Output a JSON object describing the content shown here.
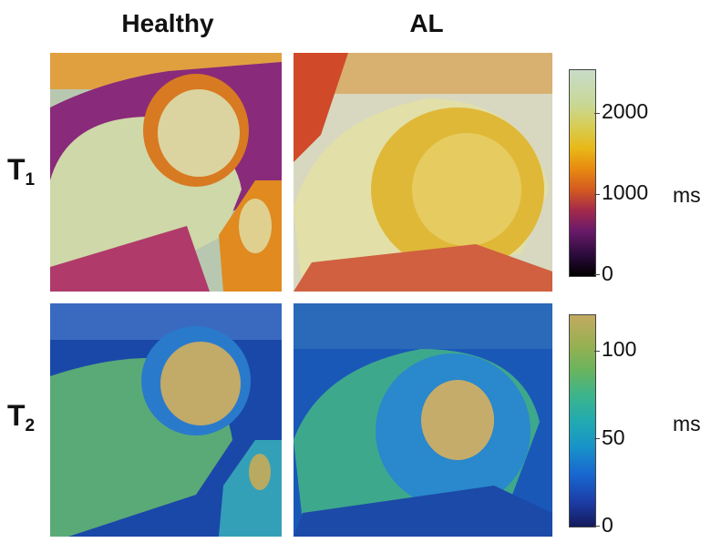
{
  "columns": {
    "healthy": "Healthy",
    "al": "AL"
  },
  "rows": {
    "t1": {
      "letter": "T",
      "sub": "1"
    },
    "t2": {
      "letter": "T",
      "sub": "2"
    }
  },
  "colorbar_t1": {
    "ticks": [
      "2000",
      "1000",
      "0"
    ],
    "unit": "ms",
    "colormap": [
      "#000000",
      "#6a1a6a",
      "#d45a20",
      "#e8b818",
      "#c8dcc8"
    ]
  },
  "colorbar_t2": {
    "ticks": [
      "100",
      "50",
      "0"
    ],
    "unit": "ms",
    "colormap": [
      "#141a5c",
      "#1868d0",
      "#22aab0",
      "#6ab45e",
      "#c2aa62"
    ]
  }
}
